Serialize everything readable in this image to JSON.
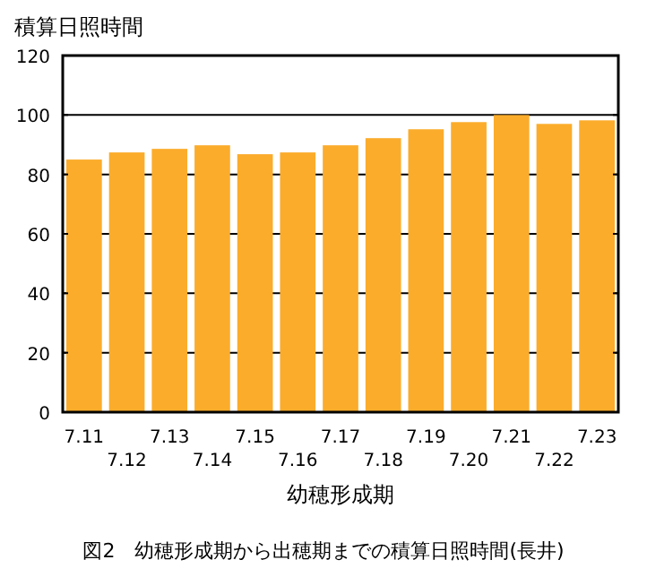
{
  "chart_data": {
    "type": "bar",
    "ylabel": "積算日照時間",
    "xlabel": "幼穂形成期",
    "categories": [
      "7.11",
      "7.12",
      "7.13",
      "7.14",
      "7.15",
      "7.16",
      "7.17",
      "7.18",
      "7.19",
      "7.20",
      "7.21",
      "7.22",
      "7.23"
    ],
    "values": [
      85,
      87.4,
      88.6,
      89.8,
      86.8,
      87.4,
      89.8,
      92.2,
      95.2,
      97.6,
      100,
      97,
      98.2
    ],
    "color": "#fbac2b",
    "ylim": [
      0,
      120
    ],
    "yticks": [
      0,
      20,
      40,
      60,
      80,
      100,
      120
    ],
    "grid": "y",
    "annotations": [
      "図2　幼穂形成期から出穂期までの積算日照時間(長井)"
    ]
  }
}
